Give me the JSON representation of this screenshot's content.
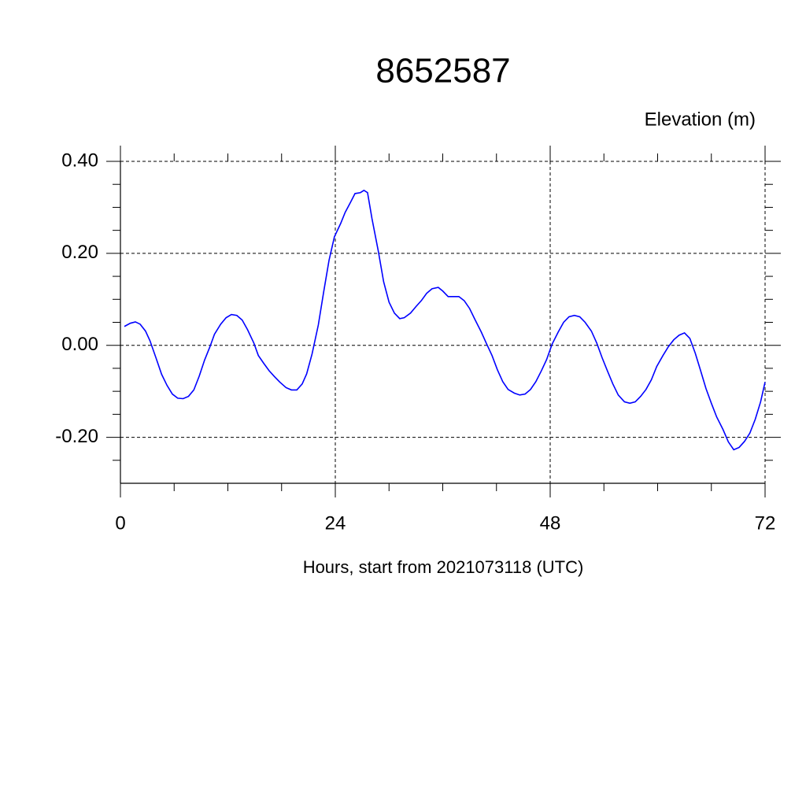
{
  "chart_data": {
    "type": "line",
    "title": "8652587",
    "y_label": "Elevation (m)",
    "x_label": "Hours, start from 2021073118 (UTC)",
    "xlim": [
      0,
      72
    ],
    "ylim": [
      -0.3,
      0.4
    ],
    "xticks": [
      0,
      24,
      48,
      72
    ],
    "yticks": [
      {
        "value": -0.2,
        "label": "-0.20"
      },
      {
        "value": 0,
        "label": "0.00"
      },
      {
        "value": 0.2,
        "label": "0.20"
      },
      {
        "value": 0.4,
        "label": "0.40"
      }
    ],
    "xminorticks": [
      6,
      12,
      18,
      30,
      36,
      42,
      54,
      60,
      66
    ],
    "yminorticks": [
      -0.25,
      -0.15,
      -0.1,
      -0.05,
      0.05,
      0.1,
      0.15,
      0.25,
      0.3,
      0.35
    ],
    "grid": true,
    "series": [
      {
        "color": "#0000ff",
        "x": [
          0.44,
          1.1,
          1.67,
          2.2,
          2.8,
          3.3,
          4.0,
          4.6,
          5.2,
          5.8,
          6.4,
          7.0,
          7.6,
          8.2,
          8.8,
          9.4,
          10.0,
          10.5,
          11.2,
          11.8,
          12.4,
          13.0,
          13.6,
          14.2,
          14.9,
          15.4,
          16.0,
          16.6,
          17.2,
          17.8,
          18.5,
          19.1,
          19.7,
          20.3,
          20.8,
          21.4,
          22.1,
          22.7,
          23.3,
          23.9,
          24.6,
          25.1,
          25.7,
          26.2,
          26.8,
          27.2,
          27.6,
          28.1,
          28.8,
          29.4,
          30.0,
          30.6,
          31.2,
          31.7,
          32.4,
          33.0,
          33.6,
          34.2,
          34.8,
          35.5,
          36.0,
          36.6,
          37.2,
          37.8,
          38.4,
          39.0,
          39.6,
          40.3,
          40.9,
          41.5,
          42.1,
          42.7,
          43.3,
          44.0,
          44.6,
          45.2,
          45.8,
          46.4,
          47.0,
          47.6,
          48.2,
          48.9,
          49.5,
          50.1,
          50.7,
          51.3,
          51.9,
          52.6,
          53.2,
          53.8,
          54.4,
          55.0,
          55.6,
          56.3,
          56.9,
          57.5,
          58.1,
          58.7,
          59.3,
          59.9,
          60.6,
          61.2,
          61.8,
          62.4,
          63.0,
          63.6,
          64.2,
          64.8,
          65.4,
          66.0,
          66.6,
          67.3,
          67.9,
          68.5,
          69.1,
          69.7,
          70.3,
          70.9,
          71.5,
          72.0
        ],
        "values": [
          0.041,
          0.048,
          0.051,
          0.046,
          0.031,
          0.01,
          -0.029,
          -0.063,
          -0.087,
          -0.106,
          -0.115,
          -0.116,
          -0.111,
          -0.097,
          -0.067,
          -0.032,
          -0.003,
          0.024,
          0.046,
          0.06,
          0.067,
          0.065,
          0.055,
          0.034,
          0.005,
          -0.022,
          -0.039,
          -0.055,
          -0.068,
          -0.08,
          -0.092,
          -0.097,
          -0.097,
          -0.084,
          -0.062,
          -0.019,
          0.044,
          0.116,
          0.185,
          0.236,
          0.265,
          0.289,
          0.311,
          0.33,
          0.332,
          0.337,
          0.332,
          0.275,
          0.205,
          0.138,
          0.094,
          0.07,
          0.058,
          0.06,
          0.07,
          0.084,
          0.097,
          0.113,
          0.123,
          0.126,
          0.118,
          0.106,
          0.106,
          0.106,
          0.097,
          0.08,
          0.056,
          0.029,
          0.003,
          -0.022,
          -0.053,
          -0.079,
          -0.096,
          -0.104,
          -0.108,
          -0.106,
          -0.096,
          -0.079,
          -0.056,
          -0.031,
          0.002,
          0.029,
          0.05,
          0.062,
          0.065,
          0.062,
          0.05,
          0.031,
          0.005,
          -0.027,
          -0.056,
          -0.084,
          -0.108,
          -0.123,
          -0.126,
          -0.123,
          -0.111,
          -0.096,
          -0.075,
          -0.046,
          -0.022,
          -0.003,
          0.012,
          0.022,
          0.027,
          0.015,
          -0.017,
          -0.055,
          -0.094,
          -0.126,
          -0.156,
          -0.183,
          -0.21,
          -0.227,
          -0.222,
          -0.209,
          -0.191,
          -0.161,
          -0.123,
          -0.08
        ]
      }
    ]
  }
}
